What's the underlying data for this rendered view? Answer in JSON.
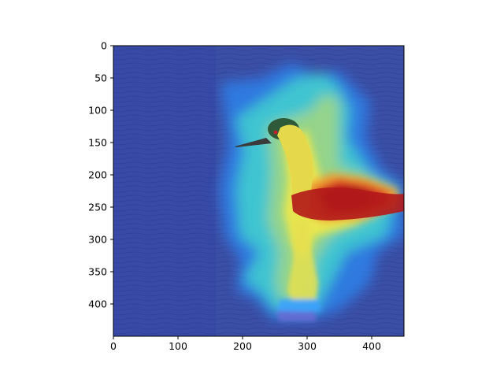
{
  "figure": {
    "x_axis": {
      "ticks": [
        0,
        100,
        200,
        300,
        400
      ],
      "range": [
        0,
        450
      ]
    },
    "y_axis": {
      "ticks": [
        0,
        50,
        100,
        150,
        200,
        250,
        300,
        350,
        400
      ],
      "range": [
        0,
        450
      ],
      "inverted": true
    }
  },
  "image": {
    "subject": "bird (grebe) swimming on water with reflection",
    "overlay": "jet colormap attention heatmap",
    "colors": {
      "water_base": "#3c4fa6",
      "heat_low": "#2a3aa8",
      "heat_cyan": "#3fd2d6",
      "heat_yellow": "#e8e650",
      "heat_red": "#c4161c",
      "bird_head": "#2f5a3a",
      "bird_neck": "#e5d84a"
    }
  }
}
